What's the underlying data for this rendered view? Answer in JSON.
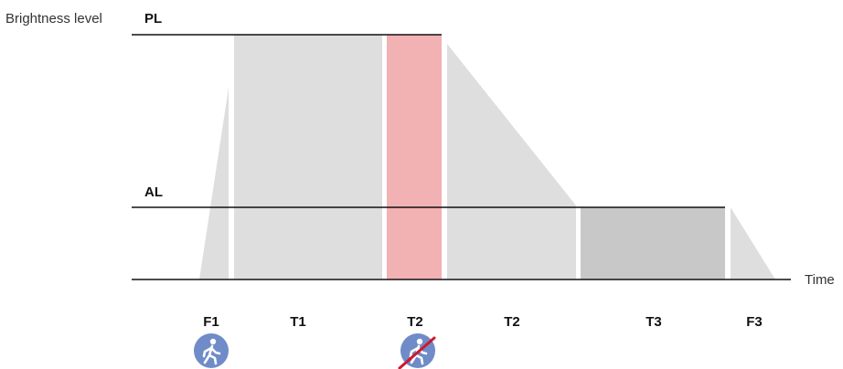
{
  "axes": {
    "y_title": "Brightness level",
    "x_title": "Time"
  },
  "levels": {
    "pl": "PL",
    "al": "AL"
  },
  "segments": {
    "f1": "F1",
    "t1": "T1",
    "t2a": "T2",
    "t2b": "T2",
    "t3": "T3",
    "f3": "F3"
  },
  "icons": {
    "motion": "person-walking-icon",
    "no_motion": "person-walking-crossed-icon"
  },
  "colors": {
    "area_light": "#dddedd",
    "area_dark": "#c8c8c8",
    "highlight": "#f2b1b3",
    "icon_fill": "#6f8cc8",
    "cross": "#d0182b",
    "line": "#111111"
  }
}
